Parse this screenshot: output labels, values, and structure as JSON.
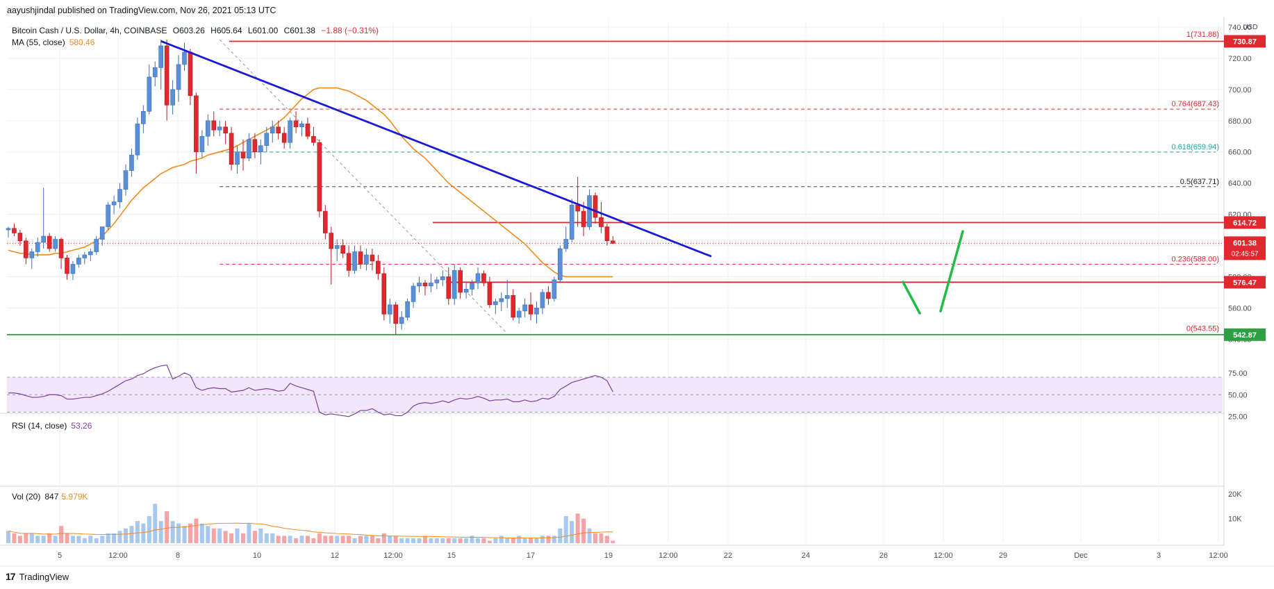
{
  "publisher": "aayushjindal published on TradingView.com, Nov 26, 2021 05:13 UTC",
  "symbol": {
    "name": "Bitcoin Cash / U.S. Dollar, 4h, COINBASE",
    "ohlc": [
      "O603.26",
      "H605.64",
      "L601.00",
      "C601.38"
    ],
    "change": "−1.88 (−0.31%)"
  },
  "ma": {
    "label": "MA (55, close)",
    "value": "580.46"
  },
  "rsi": {
    "label": "RSI (14, close)",
    "value": "53.26"
  },
  "vol": {
    "label": "Vol (20)",
    "value": "847",
    "ma_value": "5.979K"
  },
  "brand": {
    "name": "TradingView",
    "logo": "17"
  },
  "colors": {
    "up": "#5b8fd8",
    "down": "#e0282e",
    "trend": "#1a1ad6",
    "ma": "#f28a1f",
    "support": "#e0282e",
    "fib_dash": "#e0282e",
    "fib_618": "#26a69a",
    "bottom_line": "#2ea043",
    "rsi": "#7b3fa0",
    "rsi_band": "#f1e6fa",
    "projection": "#22bb44",
    "grid": "#eef0f3"
  },
  "chart_data": {
    "type": "candlestick",
    "timeframe": "4h",
    "y_axis": {
      "ticks": [
        740,
        720,
        700,
        680,
        660,
        640,
        620,
        600,
        580,
        560,
        540
      ],
      "ylim": [
        537,
        744
      ],
      "currency": "USD"
    },
    "x_axis": {
      "ticks": [
        "5",
        "12:00",
        "8",
        "10",
        "12",
        "12:00",
        "15",
        "17",
        "19",
        "12:00",
        "22",
        "24",
        "26",
        "12:00",
        "29",
        "Dec",
        "3",
        "12:00"
      ]
    },
    "candles": [
      [
        610,
        612,
        605,
        611
      ],
      [
        611,
        614,
        606,
        608
      ],
      [
        608,
        610,
        600,
        603
      ],
      [
        603,
        605,
        588,
        592
      ],
      [
        592,
        598,
        585,
        596
      ],
      [
        596,
        605,
        593,
        602
      ],
      [
        602,
        637,
        598,
        606
      ],
      [
        606,
        608,
        596,
        598
      ],
      [
        598,
        606,
        596,
        604
      ],
      [
        604,
        605,
        585,
        592
      ],
      [
        592,
        594,
        578,
        582
      ],
      [
        582,
        590,
        578,
        588
      ],
      [
        588,
        594,
        586,
        592
      ],
      [
        592,
        596,
        588,
        594
      ],
      [
        594,
        598,
        590,
        596
      ],
      [
        596,
        606,
        594,
        604
      ],
      [
        604,
        612,
        600,
        612
      ],
      [
        612,
        628,
        610,
        626
      ],
      [
        626,
        632,
        620,
        628
      ],
      [
        628,
        640,
        624,
        636
      ],
      [
        636,
        652,
        632,
        648
      ],
      [
        648,
        662,
        644,
        658
      ],
      [
        658,
        682,
        655,
        678
      ],
      [
        678,
        690,
        672,
        686
      ],
      [
        686,
        716,
        684,
        708
      ],
      [
        708,
        718,
        702,
        714
      ],
      [
        714,
        732,
        700,
        728
      ],
      [
        728,
        732,
        680,
        690
      ],
      [
        690,
        706,
        684,
        700
      ],
      [
        700,
        722,
        692,
        716
      ],
      [
        716,
        730,
        712,
        724
      ],
      [
        724,
        726,
        690,
        696
      ],
      [
        696,
        698,
        646,
        660
      ],
      [
        660,
        674,
        656,
        670
      ],
      [
        670,
        684,
        664,
        680
      ],
      [
        680,
        686,
        670,
        674
      ],
      [
        674,
        680,
        670,
        676
      ],
      [
        676,
        680,
        665,
        672
      ],
      [
        672,
        676,
        648,
        652
      ],
      [
        652,
        664,
        646,
        660
      ],
      [
        660,
        668,
        648,
        656
      ],
      [
        656,
        672,
        654,
        668
      ],
      [
        668,
        672,
        656,
        660
      ],
      [
        660,
        668,
        652,
        664
      ],
      [
        664,
        676,
        660,
        672
      ],
      [
        672,
        680,
        666,
        676
      ],
      [
        676,
        680,
        668,
        672
      ],
      [
        672,
        676,
        662,
        666
      ],
      [
        666,
        682,
        662,
        680
      ],
      [
        680,
        686,
        672,
        676
      ],
      [
        676,
        680,
        670,
        678
      ],
      [
        678,
        682,
        668,
        670
      ],
      [
        670,
        676,
        664,
        666
      ],
      [
        666,
        668,
        618,
        622
      ],
      [
        622,
        626,
        604,
        608
      ],
      [
        608,
        612,
        575,
        598
      ],
      [
        598,
        604,
        590,
        600
      ],
      [
        600,
        604,
        592,
        595
      ],
      [
        595,
        600,
        580,
        584
      ],
      [
        584,
        600,
        582,
        596
      ],
      [
        596,
        600,
        585,
        588
      ],
      [
        588,
        598,
        584,
        594
      ],
      [
        594,
        598,
        584,
        590
      ],
      [
        590,
        594,
        578,
        582
      ],
      [
        582,
        586,
        552,
        556
      ],
      [
        556,
        566,
        550,
        562
      ],
      [
        562,
        564,
        543,
        550
      ],
      [
        550,
        558,
        546,
        554
      ],
      [
        554,
        566,
        552,
        564
      ],
      [
        564,
        576,
        560,
        574
      ],
      [
        574,
        580,
        570,
        576
      ],
      [
        576,
        578,
        568,
        574
      ],
      [
        574,
        582,
        570,
        576
      ],
      [
        576,
        580,
        572,
        578
      ],
      [
        578,
        584,
        574,
        580
      ],
      [
        580,
        586,
        562,
        566
      ],
      [
        566,
        588,
        562,
        584
      ],
      [
        584,
        586,
        566,
        570
      ],
      [
        570,
        576,
        566,
        572
      ],
      [
        572,
        578,
        568,
        576
      ],
      [
        576,
        586,
        572,
        582
      ],
      [
        582,
        584,
        574,
        576
      ],
      [
        576,
        580,
        560,
        562
      ],
      [
        562,
        566,
        556,
        564
      ],
      [
        564,
        570,
        558,
        566
      ],
      [
        566,
        578,
        560,
        568
      ],
      [
        568,
        572,
        552,
        554
      ],
      [
        554,
        560,
        550,
        558
      ],
      [
        558,
        566,
        554,
        562
      ],
      [
        562,
        570,
        552,
        556
      ],
      [
        556,
        564,
        550,
        560
      ],
      [
        560,
        572,
        556,
        570
      ],
      [
        570,
        574,
        562,
        566
      ],
      [
        566,
        580,
        564,
        578
      ],
      [
        578,
        600,
        576,
        598
      ],
      [
        598,
        612,
        596,
        604
      ],
      [
        604,
        630,
        602,
        626
      ],
      [
        626,
        644,
        612,
        622
      ],
      [
        622,
        628,
        606,
        612
      ],
      [
        612,
        636,
        610,
        632
      ],
      [
        632,
        634,
        614,
        618
      ],
      [
        618,
        628,
        608,
        612
      ],
      [
        612,
        614,
        600,
        603
      ],
      [
        603,
        606,
        601,
        601.38
      ]
    ],
    "ma55": [
      597,
      596,
      595,
      595,
      594,
      594,
      594,
      594,
      595,
      595,
      596,
      597,
      598,
      599,
      601,
      603,
      606,
      610,
      614,
      619,
      624,
      629,
      633,
      637,
      640,
      643,
      646,
      648,
      650,
      651,
      652,
      654,
      655,
      656,
      658,
      659,
      660,
      661,
      662,
      664,
      666,
      668,
      670,
      672,
      674,
      676,
      679,
      682,
      686,
      690,
      694,
      697,
      700,
      701,
      701,
      701,
      701,
      700,
      699,
      697,
      695,
      693,
      690,
      687,
      684,
      680,
      675,
      670,
      666,
      662,
      659,
      656,
      652,
      648,
      644,
      640,
      637,
      634,
      631,
      628,
      625,
      622,
      619,
      616,
      613,
      610,
      607,
      604,
      601,
      597,
      593,
      589,
      586,
      583,
      581,
      580,
      580,
      580,
      580,
      580,
      580,
      580,
      580,
      580
    ],
    "volume": [
      5,
      4,
      3,
      4,
      4,
      3,
      3,
      4,
      3,
      7,
      4,
      3,
      3,
      2,
      3,
      2,
      3,
      4,
      4,
      5,
      6,
      7,
      9,
      8,
      11,
      16,
      9,
      13,
      9,
      8,
      7,
      8,
      10,
      8,
      7,
      6,
      6,
      5,
      4,
      6,
      4,
      8,
      5,
      6,
      4,
      4,
      3,
      3,
      3,
      2,
      3,
      3,
      2,
      4,
      3,
      3,
      3,
      3,
      3,
      2,
      3,
      3,
      3,
      2,
      4,
      3,
      3,
      2,
      2,
      2,
      2,
      3,
      2,
      2,
      2,
      2,
      2,
      2,
      2,
      3,
      2,
      2,
      1,
      2,
      3,
      2,
      2,
      3,
      2,
      2,
      2,
      3,
      3,
      3,
      6,
      11,
      9,
      12,
      10,
      6,
      4,
      4,
      3,
      1
    ],
    "rsi": [
      52,
      52,
      51,
      49,
      47,
      47,
      48,
      50,
      50,
      49,
      45,
      45,
      46,
      47,
      47,
      49,
      51,
      54,
      58,
      62,
      66,
      68,
      72,
      74,
      78,
      81,
      83,
      84,
      68,
      71,
      75,
      72,
      58,
      55,
      57,
      58,
      57,
      57,
      53,
      54,
      55,
      58,
      55,
      56,
      57,
      56,
      54,
      55,
      63,
      60,
      58,
      56,
      54,
      30,
      27,
      28,
      27,
      26,
      25,
      28,
      32,
      32,
      34,
      30,
      27,
      28,
      26,
      26,
      30,
      37,
      40,
      41,
      40,
      41,
      43,
      41,
      44,
      46,
      45,
      46,
      48,
      46,
      43,
      44,
      44,
      45,
      42,
      42,
      44,
      42,
      43,
      46,
      45,
      48,
      56,
      60,
      64,
      66,
      68,
      70,
      72,
      70,
      66,
      53.26
    ],
    "rsi_levels": [
      70,
      50,
      30
    ],
    "rsi_ticks": [
      "75.00",
      "50.00",
      "25.00"
    ],
    "vol_ticks": [
      "20K",
      "10K"
    ],
    "levels": [
      {
        "label": "730.87",
        "value": 730.87,
        "color": "#e0282e"
      },
      {
        "label": "614.72",
        "value": 614.72,
        "color": "#e0282e"
      },
      {
        "label": "576.47",
        "value": 576.47,
        "color": "#e0282e"
      },
      {
        "label": "542.87",
        "value": 542.87,
        "color": "#2ea043"
      }
    ],
    "last_price": {
      "label": "601.38",
      "value": 601.38,
      "countdown": "02:45:57"
    },
    "fib": [
      {
        "label": "1(731.88)",
        "value": 731.88
      },
      {
        "label": "0.764(687.43)",
        "value": 687.43
      },
      {
        "label": "0.618(659.94)",
        "value": 659.94
      },
      {
        "label": "0.5(637.71)",
        "value": 637.71
      },
      {
        "label": "0.236(588.00)",
        "value": 588.0
      },
      {
        "label": "0(543.55)",
        "value": 543.55
      }
    ],
    "trendline": {
      "from_index": 26,
      "from_value": 731,
      "to_index": 89,
      "to_value": 593
    }
  }
}
